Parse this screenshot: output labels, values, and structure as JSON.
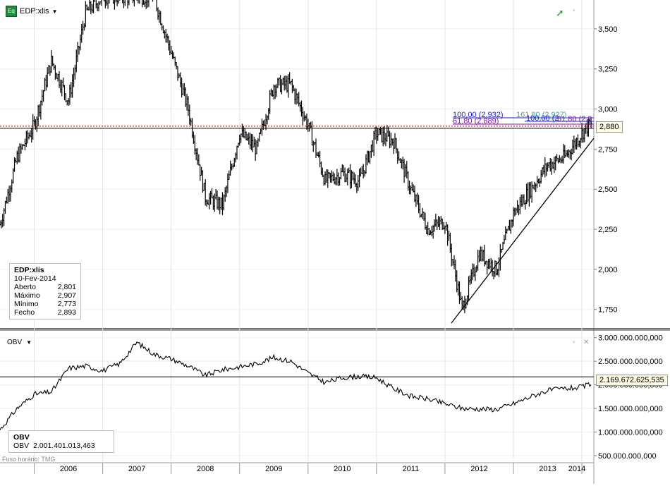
{
  "symbol": {
    "label": "EDP:xlis"
  },
  "price_panel": {
    "axis_ticks": [
      "3,500",
      "3,250",
      "3,000",
      "2,750",
      "2,500",
      "2,250",
      "2,000",
      "1,750"
    ],
    "current_label": "2,880",
    "fib_labels": [
      "100,00 (2,932)",
      "161,80 (2,927)",
      "100,00 (2",
      "61,80 (2,889)",
      "61,80 (2,9"
    ]
  },
  "tooltip_price": {
    "title": "EDP:xlis",
    "date": "10-Fev-2014",
    "rows": [
      {
        "k": "Aberto",
        "v": "2,801"
      },
      {
        "k": "Máximo",
        "v": "2,907"
      },
      {
        "k": "Mínimo",
        "v": "2,773"
      },
      {
        "k": "Fecho",
        "v": "2,893"
      }
    ]
  },
  "obv_panel": {
    "label": "OBV",
    "axis_ticks": [
      "3.000.000.000,000",
      "2.500.000.000,000",
      "2.000.000.000,000",
      "1.500.000.000,000",
      "1.000.000.000,000",
      "500.000.000,000"
    ],
    "current_label": "2.169.672.625,535"
  },
  "tooltip_obv": {
    "title": "OBV",
    "key": "OBV",
    "value": "2.001.401.013,463"
  },
  "time_axis": {
    "years": [
      "2006",
      "2007",
      "2008",
      "2009",
      "2010",
      "2011",
      "2012",
      "2013",
      "2014"
    ]
  },
  "footer": {
    "timezone": "Fuso horário: TMG"
  },
  "colors": {
    "price": "#000000",
    "obv": "#000000",
    "fib_blue": "#1e1ec8",
    "fib_purple": "#7a1ea0",
    "fib_teal": "#4aa3a3",
    "hline_red": "#c00000",
    "trend": "#000000"
  },
  "chart_data": [
    {
      "type": "ohlc_weekly",
      "title": "EDP:xlis",
      "x_range": [
        "2005-07",
        "2014-02"
      ],
      "ylim": [
        1.63,
        3.68
      ],
      "x": [
        "2005-07",
        "2005-10",
        "2006-01",
        "2006-04",
        "2006-07",
        "2006-10",
        "2007-01",
        "2007-04",
        "2007-07",
        "2007-10",
        "2008-01",
        "2008-04",
        "2008-07",
        "2008-10",
        "2009-01",
        "2009-04",
        "2009-07",
        "2009-10",
        "2010-01",
        "2010-04",
        "2010-07",
        "2010-10",
        "2011-01",
        "2011-04",
        "2011-07",
        "2011-10",
        "2012-01",
        "2012-04",
        "2012-07",
        "2012-10",
        "2013-01",
        "2013-04",
        "2013-07",
        "2013-10",
        "2014-01",
        "2014-02"
      ],
      "close": [
        2.28,
        2.7,
        2.9,
        3.3,
        3.05,
        3.6,
        3.7,
        3.7,
        3.7,
        3.7,
        3.35,
        3.0,
        2.45,
        2.4,
        2.85,
        2.75,
        3.15,
        3.15,
        2.9,
        2.55,
        2.6,
        2.55,
        2.85,
        2.8,
        2.5,
        2.25,
        2.3,
        1.75,
        2.1,
        2.0,
        2.35,
        2.5,
        2.65,
        2.7,
        2.85,
        2.893
      ],
      "annotations": {
        "last_open": 2.801,
        "last_high": 2.907,
        "last_low": 2.773,
        "last_close": 2.893,
        "current": 2.88
      }
    },
    {
      "type": "line",
      "title": "OBV",
      "ylim": [
        350000000,
        3100000000
      ],
      "x": [
        "2005-07",
        "2005-10",
        "2006-01",
        "2006-04",
        "2006-07",
        "2006-10",
        "2007-01",
        "2007-04",
        "2007-07",
        "2007-10",
        "2008-01",
        "2008-04",
        "2008-07",
        "2008-10",
        "2009-01",
        "2009-04",
        "2009-07",
        "2009-10",
        "2010-01",
        "2010-04",
        "2010-07",
        "2010-10",
        "2011-01",
        "2011-04",
        "2011-07",
        "2011-10",
        "2012-01",
        "2012-04",
        "2012-07",
        "2012-10",
        "2013-01",
        "2013-04",
        "2013-07",
        "2013-10",
        "2014-01",
        "2014-02"
      ],
      "values": [
        1050000000,
        1500000000,
        1800000000,
        1850000000,
        2350000000,
        2400000000,
        2300000000,
        2450000000,
        2900000000,
        2650000000,
        2550000000,
        2400000000,
        2200000000,
        2320000000,
        2380000000,
        2450000000,
        2580000000,
        2500000000,
        2250000000,
        2050000000,
        2150000000,
        2180000000,
        2150000000,
        1920000000,
        1760000000,
        1700000000,
        1600000000,
        1500000000,
        1490000000,
        1480000000,
        1600000000,
        1750000000,
        1880000000,
        1920000000,
        1950000000,
        2001401013
      ]
    }
  ]
}
